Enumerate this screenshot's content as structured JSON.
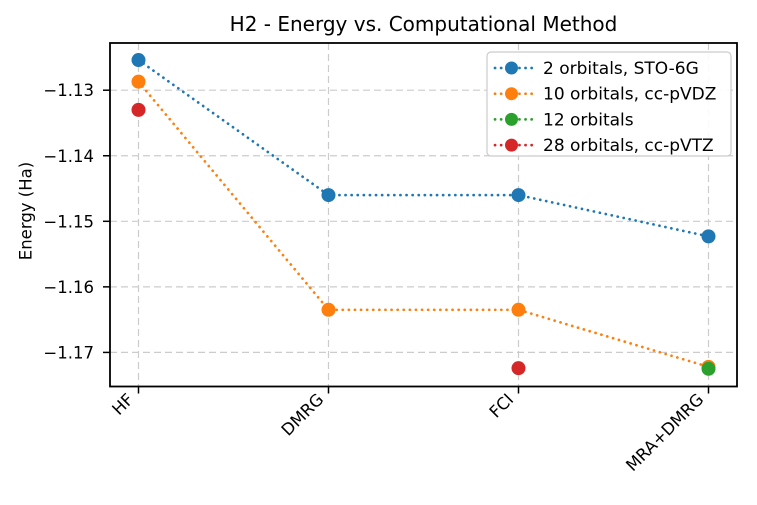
{
  "chart_data": {
    "type": "line",
    "title": "H2 - Energy vs. Computational Method",
    "xlabel": "",
    "ylabel": "Energy (Ha)",
    "categories": [
      "HF",
      "DMRG",
      "FCI",
      "MRA+DMRG"
    ],
    "series": [
      {
        "name": "2 orbitals, STO-6G",
        "color": "#1f77b4",
        "marker": "circle",
        "line": "dotted",
        "values": [
          -1.1254,
          -1.146,
          -1.146,
          -1.1523
        ]
      },
      {
        "name": "10 orbitals, cc-pVDZ",
        "color": "#ff7f0e",
        "marker": "circle",
        "line": "dotted",
        "values": [
          -1.1287,
          -1.1635,
          -1.1635,
          -1.1722
        ]
      },
      {
        "name": "12 orbitals",
        "color": "#2ca02c",
        "marker": "circle",
        "line": "dotted",
        "values": [
          null,
          null,
          null,
          -1.1725
        ]
      },
      {
        "name": "28 orbitals, cc-pVTZ",
        "color": "#d62728",
        "marker": "circle",
        "line": "dotted",
        "values": [
          -1.133,
          null,
          -1.1724,
          null
        ]
      }
    ],
    "y_ticks": [
      -1.13,
      -1.14,
      -1.15,
      -1.16,
      -1.17
    ],
    "y_tick_labels": [
      "−1.13",
      "−1.14",
      "−1.15",
      "−1.16",
      "−1.17"
    ],
    "ylim": [
      -1.1752,
      -1.1228
    ],
    "grid": true,
    "grid_style": "dashed",
    "legend_position": "upper right"
  }
}
